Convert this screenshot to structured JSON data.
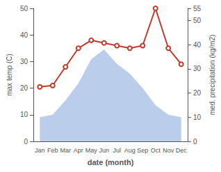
{
  "chart_data": {
    "type": "line",
    "xlabel": "date (month)",
    "ylabel": "max temp (C)",
    "y2label": "med. precipitation (kg/m2)",
    "categories": [
      "Jan",
      "Feb",
      "Mar",
      "Apr",
      "May",
      "Jun",
      "Jul",
      "Aug",
      "Sep",
      "Oct",
      "Nov",
      "Dec"
    ],
    "series": [
      {
        "type": "area",
        "axis": "y2",
        "color": "#aec6e8",
        "values": [
          10,
          11,
          17,
          24,
          34,
          38,
          32,
          28,
          22,
          15,
          11,
          10
        ]
      },
      {
        "type": "line",
        "color": "#c0392b",
        "values": [
          20.5,
          21,
          28,
          35,
          38,
          37,
          36,
          35,
          36,
          50,
          35,
          29
        ]
      }
    ],
    "ylim": [
      0,
      50
    ],
    "yticks": [
      0,
      10,
      20,
      30,
      40,
      50
    ],
    "y2lim": [
      0,
      55
    ],
    "y2ticks": [
      0,
      10,
      20,
      30,
      40,
      50
    ],
    "grid": false
  }
}
